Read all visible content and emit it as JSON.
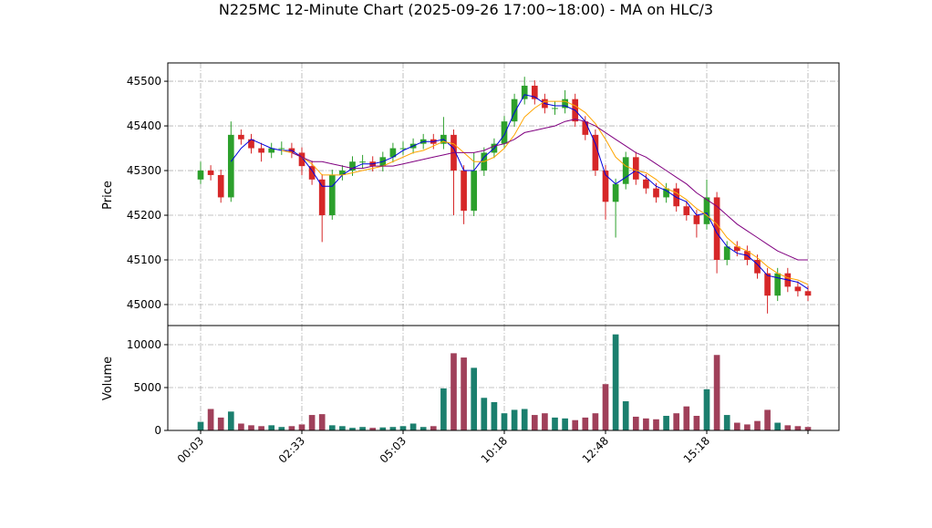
{
  "chart_data": {
    "type": "candlestick",
    "title": "N225MC 12-Minute Chart (2025-09-26 17:00~18:00) - MA on HLC/3",
    "ylabel": "Price",
    "y2label": "Volume",
    "categories": [
      "00:03",
      null,
      null,
      null,
      null,
      null,
      null,
      null,
      null,
      null,
      "02:33",
      null,
      null,
      null,
      null,
      null,
      null,
      null,
      null,
      null,
      "05:03",
      null,
      null,
      null,
      null,
      null,
      null,
      null,
      null,
      null,
      "10:18",
      null,
      null,
      null,
      null,
      null,
      null,
      null,
      null,
      null,
      "12:48",
      null,
      null,
      null,
      null,
      null,
      null,
      null,
      null,
      null,
      "15:18",
      null,
      null,
      null,
      null,
      null,
      null,
      null,
      null,
      null,
      null
    ],
    "xticks": [
      0,
      10,
      20,
      30,
      40,
      50,
      60
    ],
    "open": [
      45280,
      45300,
      45290,
      45240,
      45380,
      45370,
      45350,
      45340,
      45350,
      45350,
      45340,
      45310,
      45280,
      45200,
      45290,
      45300,
      45320,
      45320,
      45310,
      45330,
      45350,
      45350,
      45360,
      45370,
      45360,
      45380,
      45300,
      45210,
      45300,
      45340,
      45360,
      45410,
      45460,
      45490,
      45460,
      45440,
      45440,
      45460,
      45410,
      45380,
      45300,
      45230,
      45270,
      45330,
      45280,
      45260,
      45240,
      45260,
      45220,
      45200,
      45180,
      45240,
      45100,
      45130,
      45120,
      45100,
      45070,
      45020,
      45070,
      45040,
      45030
    ],
    "high": [
      45320,
      45312,
      45302,
      45410,
      45392,
      45382,
      45362,
      45362,
      45365,
      45362,
      45352,
      45322,
      45292,
      45302,
      45312,
      45332,
      45335,
      45332,
      45342,
      45362,
      45365,
      45372,
      45382,
      45382,
      45420,
      45392,
      45312,
      45340,
      45352,
      45372,
      45422,
      45472,
      45510,
      45502,
      45472,
      45455,
      45480,
      45472,
      45422,
      45392,
      45312,
      45282,
      45342,
      45342,
      45292,
      45272,
      45272,
      45272,
      45232,
      45212,
      45280,
      45252,
      45142,
      45142,
      45132,
      45112,
      45082,
      45082,
      45082,
      45052,
      45042
    ],
    "low": [
      45270,
      45278,
      45228,
      45230,
      45358,
      45338,
      45320,
      45328,
      45335,
      45328,
      45290,
      45268,
      45140,
      45190,
      45278,
      45288,
      45305,
      45298,
      45298,
      45318,
      45335,
      45338,
      45348,
      45348,
      45348,
      45200,
      45180,
      45198,
      45288,
      45328,
      45348,
      45398,
      45448,
      45448,
      45428,
      45425,
      45428,
      45398,
      45368,
      45288,
      45190,
      45150,
      45258,
      45268,
      45248,
      45228,
      45228,
      45208,
      45188,
      45150,
      45168,
      45070,
      45088,
      45108,
      45088,
      45058,
      44980,
      45008,
      45028,
      45018,
      45008
    ],
    "close": [
      45300,
      45290,
      45240,
      45380,
      45370,
      45350,
      45340,
      45350,
      45350,
      45340,
      45310,
      45280,
      45200,
      45290,
      45300,
      45320,
      45320,
      45310,
      45330,
      45350,
      45350,
      45360,
      45370,
      45360,
      45380,
      45300,
      45210,
      45300,
      45340,
      45360,
      45410,
      45460,
      45490,
      45460,
      45440,
      45440,
      45460,
      45410,
      45380,
      45300,
      45230,
      45270,
      45330,
      45280,
      45260,
      45240,
      45260,
      45220,
      45200,
      45180,
      45240,
      45100,
      45130,
      45120,
      45100,
      45070,
      45020,
      45070,
      45040,
      45030,
      45020
    ],
    "volume": [
      1000,
      2500,
      1500,
      2200,
      800,
      600,
      500,
      600,
      400,
      500,
      700,
      1800,
      1900,
      600,
      500,
      300,
      400,
      300,
      350,
      400,
      500,
      800,
      400,
      500,
      4900,
      9000,
      8500,
      7300,
      3800,
      3300,
      2000,
      2400,
      2500,
      1800,
      2000,
      1500,
      1400,
      1200,
      1500,
      2000,
      5400,
      11200,
      3400,
      1600,
      1400,
      1300,
      1700,
      2000,
      2800,
      1700,
      4800,
      8800,
      1800,
      900,
      700,
      1100,
      2400,
      900,
      600,
      500,
      400
    ],
    "series": [
      {
        "color": "#0000dd",
        "values": [
          null,
          null,
          null,
          45320,
          45350,
          45370,
          45360,
          45350,
          45345,
          45345,
          45330,
          45300,
          45265,
          45265,
          45290,
          45305,
          45315,
          45315,
          45320,
          45330,
          45345,
          45355,
          45365,
          45365,
          45370,
          45350,
          45300,
          45300,
          45330,
          45350,
          45380,
          45430,
          45470,
          45465,
          45450,
          45445,
          45445,
          45435,
          45410,
          45360,
          45290,
          45270,
          45285,
          45300,
          45285,
          45265,
          45255,
          45240,
          45230,
          45200,
          45205,
          45160,
          45130,
          45115,
          45110,
          45090,
          45065,
          45060,
          45055,
          45050,
          45035
        ]
      },
      {
        "color": "#ffa500",
        "values": [
          null,
          null,
          null,
          null,
          null,
          null,
          null,
          null,
          45345,
          45340,
          45330,
          45315,
          45290,
          45290,
          45290,
          45295,
          45300,
          45305,
          45310,
          45320,
          45330,
          45340,
          45345,
          45355,
          45365,
          45360,
          45340,
          45320,
          45320,
          45330,
          45350,
          45380,
          45420,
          45440,
          45455,
          45455,
          45455,
          45445,
          45430,
          45405,
          45370,
          45330,
          45310,
          45300,
          45295,
          45280,
          45260,
          45250,
          45235,
          45215,
          45200,
          45180,
          45150,
          45130,
          45120,
          45105,
          45085,
          45070,
          45060,
          45055,
          45045
        ]
      },
      {
        "color": "#800080",
        "values": [
          null,
          null,
          null,
          null,
          null,
          null,
          null,
          null,
          null,
          45340,
          45330,
          45320,
          45320,
          45315,
          45310,
          45305,
          45305,
          45310,
          45310,
          45310,
          45315,
          45320,
          45325,
          45330,
          45335,
          45340,
          45340,
          45340,
          45345,
          45355,
          45360,
          45370,
          45385,
          45390,
          45395,
          45400,
          45410,
          45415,
          45410,
          45400,
          45385,
          45370,
          45355,
          45340,
          45330,
          45315,
          45300,
          45285,
          45270,
          45250,
          45235,
          45220,
          45200,
          45180,
          45165,
          45150,
          45135,
          45120,
          45110,
          45100,
          45100
        ]
      }
    ],
    "up_color": "#2ca02c",
    "down_color": "#d62728",
    "volume_up_color": "#1b7f6e",
    "volume_down_color": "#a0405a",
    "ylim": [
      44953,
      45541
    ],
    "yticks": [
      45000,
      45100,
      45200,
      45300,
      45400,
      45500
    ],
    "y2lim": [
      0,
      12230
    ],
    "y2ticks": [
      0,
      5000,
      10000
    ],
    "grid": true
  }
}
